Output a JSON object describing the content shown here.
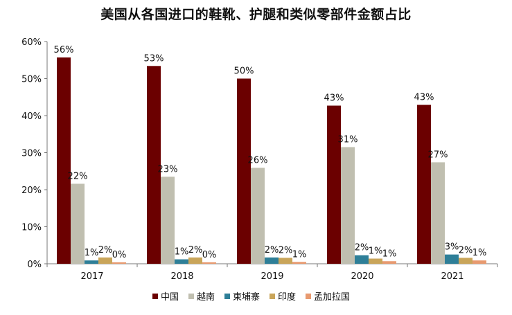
{
  "chart_data": {
    "type": "bar",
    "title": "美国从各国进口的鞋靴、护腿和类似零部件金额占比",
    "categories": [
      "2017",
      "2018",
      "2019",
      "2020",
      "2021"
    ],
    "series": [
      {
        "name": "中国",
        "color": "#6b0000",
        "values": [
          55.7,
          53.4,
          50.0,
          42.7,
          42.9
        ],
        "labels": [
          "56%",
          "53%",
          "50%",
          "43%",
          "43%"
        ]
      },
      {
        "name": "越南",
        "color": "#c0bfb0",
        "values": [
          21.6,
          23.5,
          25.9,
          31.5,
          27.4
        ],
        "labels": [
          "22%",
          "23%",
          "26%",
          "31%",
          "27%"
        ]
      },
      {
        "name": "柬埔寨",
        "color": "#2e7f98",
        "values": [
          0.9,
          1.2,
          1.7,
          2.3,
          2.5
        ],
        "labels": [
          "1%",
          "1%",
          "2%",
          "2%",
          "3%"
        ]
      },
      {
        "name": "印度",
        "color": "#c9a55a",
        "values": [
          1.7,
          1.7,
          1.6,
          1.4,
          1.6
        ],
        "labels": [
          "2%",
          "2%",
          "2%",
          "1%",
          "2%"
        ]
      },
      {
        "name": "孟加拉国",
        "color": "#e89a70",
        "values": [
          0.4,
          0.4,
          0.5,
          0.7,
          0.9
        ],
        "labels": [
          "0%",
          "0%",
          "1%",
          "1%",
          "1%"
        ]
      }
    ],
    "ylim": [
      0,
      60
    ],
    "yticks": [
      0,
      10,
      20,
      30,
      40,
      50,
      60
    ],
    "ytick_labels": [
      "0%",
      "10%",
      "20%",
      "30%",
      "40%",
      "50%",
      "60%"
    ],
    "xlabel": "",
    "ylabel": "",
    "grid": false,
    "legend_position": "bottom"
  }
}
